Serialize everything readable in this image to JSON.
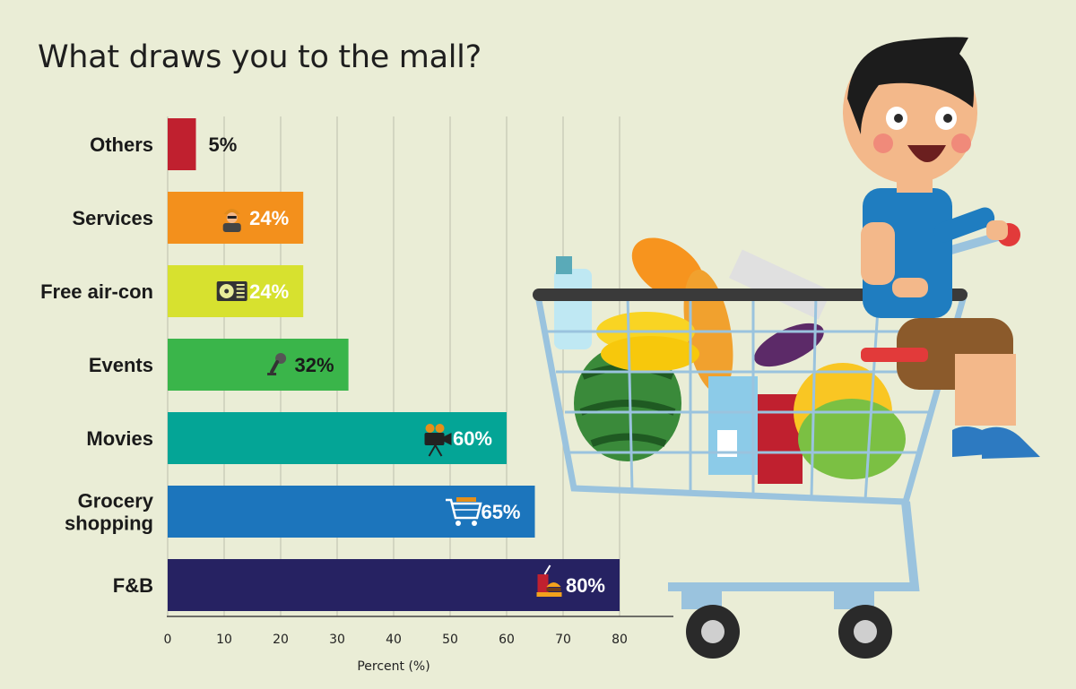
{
  "chart_data": {
    "type": "bar",
    "orientation": "horizontal",
    "title": "What draws you to the mall?",
    "xlabel": "Percent (%)",
    "ylabel": "",
    "xlim": [
      0,
      80
    ],
    "xticks": [
      0,
      10,
      20,
      30,
      40,
      50,
      60,
      70,
      80
    ],
    "grid": true,
    "categories": [
      "Others",
      "Services",
      "Free air-con",
      "Events",
      "Movies",
      "Grocery shopping",
      "F&B"
    ],
    "category_lines": [
      [
        "Others"
      ],
      [
        "Services"
      ],
      [
        "Free air-con"
      ],
      [
        "Events"
      ],
      [
        "Movies"
      ],
      [
        "Grocery",
        "shopping"
      ],
      [
        "F&B"
      ]
    ],
    "values": [
      5,
      24,
      24,
      32,
      60,
      65,
      80
    ],
    "value_labels": [
      "5%",
      "24%",
      "24%",
      "32%",
      "60%",
      "65%",
      "80%"
    ],
    "colors": [
      "#c0202f",
      "#f3901c",
      "#d7e12f",
      "#3ab54a",
      "#04a596",
      "#1c75bc",
      "#262262"
    ],
    "label_colors": [
      "#1a1a1a",
      "#ffffff",
      "#ffffff",
      "#1a1a1a",
      "#ffffff",
      "#ffffff",
      "#ffffff"
    ],
    "icons": [
      "",
      "worker-icon",
      "air-conditioner-icon",
      "microphone-icon",
      "movie-camera-icon",
      "shopping-cart-icon",
      "fast-food-icon"
    ]
  },
  "illustration": {
    "subject": "boy sitting in a shopping cart full of groceries",
    "colors": {
      "shirt": "#1f7dc0",
      "cart": "#9ac3de",
      "hair": "#1c1c1c",
      "skin": "#f3b88a"
    }
  }
}
